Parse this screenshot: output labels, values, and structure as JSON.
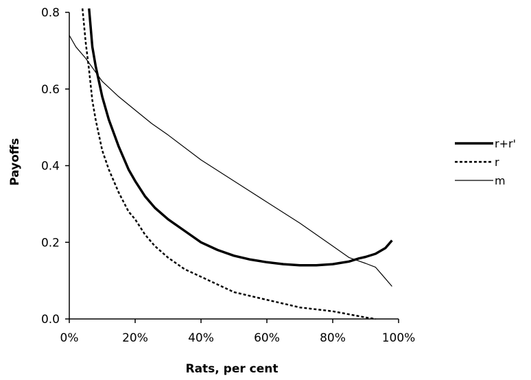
{
  "chart_data": {
    "type": "line",
    "title": "",
    "xlabel": "Rats, per cent",
    "ylabel": "Payoffs",
    "xlim": [
      0,
      100
    ],
    "ylim": [
      0,
      0.8
    ],
    "x_ticks": [
      0,
      20,
      40,
      60,
      80,
      100
    ],
    "x_tick_labels": [
      "0%",
      "20%",
      "40%",
      "60%",
      "80%",
      "100%"
    ],
    "y_ticks": [
      0,
      0.2,
      0.4,
      0.6,
      0.8
    ],
    "y_tick_labels": [
      "0.0",
      "0.2",
      "0.4",
      "0.6",
      "0.8"
    ],
    "grid": false,
    "legend_position": "right",
    "series": [
      {
        "name": "r+r'",
        "style": "thick-solid",
        "color": "#000000",
        "x": [
          6,
          7,
          8,
          10,
          12,
          15,
          18,
          20,
          23,
          26,
          30,
          35,
          40,
          45,
          50,
          55,
          60,
          65,
          70,
          75,
          80,
          85,
          88,
          90,
          93,
          96,
          98
        ],
        "y": [
          0.81,
          0.71,
          0.66,
          0.58,
          0.52,
          0.45,
          0.39,
          0.36,
          0.32,
          0.29,
          0.26,
          0.23,
          0.2,
          0.18,
          0.165,
          0.155,
          0.148,
          0.143,
          0.14,
          0.14,
          0.143,
          0.15,
          0.158,
          0.162,
          0.17,
          0.185,
          0.205
        ]
      },
      {
        "name": "r",
        "style": "dotted",
        "color": "#000000",
        "x": [
          4,
          5,
          6,
          7,
          8,
          10,
          12,
          15,
          18,
          20,
          23,
          26,
          30,
          35,
          40,
          45,
          50,
          55,
          60,
          65,
          70,
          75,
          80,
          85,
          90,
          93
        ],
        "y": [
          0.81,
          0.72,
          0.65,
          0.57,
          0.52,
          0.44,
          0.39,
          0.33,
          0.28,
          0.26,
          0.22,
          0.19,
          0.16,
          0.13,
          0.11,
          0.09,
          0.07,
          0.06,
          0.05,
          0.04,
          0.03,
          0.025,
          0.02,
          0.012,
          0.004,
          0.0
        ]
      },
      {
        "name": "m",
        "style": "thin-solid",
        "color": "#000000",
        "x": [
          0,
          2,
          5,
          10,
          15,
          20,
          25,
          30,
          40,
          50,
          60,
          70,
          80,
          85,
          90,
          93,
          95,
          98
        ],
        "y": [
          0.74,
          0.71,
          0.68,
          0.62,
          0.58,
          0.545,
          0.51,
          0.48,
          0.415,
          0.36,
          0.305,
          0.25,
          0.19,
          0.16,
          0.145,
          0.135,
          0.115,
          0.085
        ]
      }
    ]
  }
}
